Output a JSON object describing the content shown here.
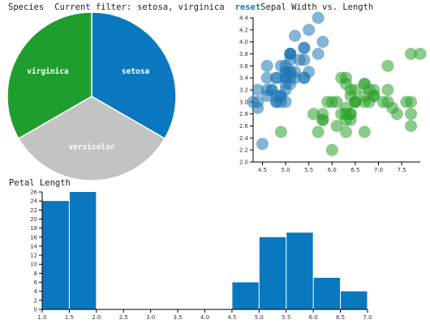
{
  "header": {
    "pie_title": "Species",
    "filter_label": "Current filter:",
    "filter_value": "setosa, virginica",
    "reset_label": "reset",
    "scatter_title": "Sepal Width vs. Length"
  },
  "histogram_title": "Petal Length",
  "colors": {
    "setosa": "#0a78bf",
    "versicolor": "#c3c3c3",
    "virginica": "#1f9e2f",
    "scatter_setosa": "#1f77b4",
    "scatter_virginica": "#2ca02c",
    "histogram_bar": "#0a78bf"
  },
  "chart_data": [
    {
      "type": "pie",
      "title": "Species",
      "slices": [
        {
          "label": "setosa",
          "value": 50
        },
        {
          "label": "versicolor",
          "value": 50
        },
        {
          "label": "virginica",
          "value": 50
        }
      ]
    },
    {
      "type": "scatter",
      "title": "Sepal Width vs. Length",
      "xlim": [
        4.3,
        7.9
      ],
      "ylim": [
        2.0,
        4.4
      ],
      "x_ticks": [
        "4.5",
        "5.0",
        "5.5",
        "6.0",
        "6.5",
        "7.0",
        "7.5"
      ],
      "y_ticks": [
        "2.0",
        "2.2",
        "2.4",
        "2.6",
        "2.8",
        "3.0",
        "3.2",
        "3.4",
        "3.6",
        "3.8",
        "4.0",
        "4.2",
        "4.4"
      ],
      "series": [
        {
          "points": [
            [
              5.1,
              3.5
            ],
            [
              4.9,
              3.0
            ],
            [
              4.7,
              3.2
            ],
            [
              4.6,
              3.1
            ],
            [
              5.0,
              3.6
            ],
            [
              5.4,
              3.9
            ],
            [
              4.6,
              3.4
            ],
            [
              5.0,
              3.4
            ],
            [
              4.4,
              2.9
            ],
            [
              4.9,
              3.1
            ],
            [
              5.4,
              3.7
            ],
            [
              4.8,
              3.4
            ],
            [
              4.8,
              3.0
            ],
            [
              4.3,
              3.0
            ],
            [
              5.8,
              4.0
            ],
            [
              5.7,
              4.4
            ],
            [
              5.4,
              3.9
            ],
            [
              5.1,
              3.5
            ],
            [
              5.7,
              3.8
            ],
            [
              5.1,
              3.8
            ],
            [
              5.4,
              3.4
            ],
            [
              5.1,
              3.7
            ],
            [
              4.6,
              3.6
            ],
            [
              5.1,
              3.3
            ],
            [
              4.8,
              3.4
            ],
            [
              5.0,
              3.0
            ],
            [
              5.0,
              3.4
            ],
            [
              5.2,
              3.5
            ],
            [
              5.2,
              3.4
            ],
            [
              4.7,
              3.2
            ],
            [
              4.8,
              3.1
            ],
            [
              5.4,
              3.4
            ],
            [
              5.2,
              4.1
            ],
            [
              5.5,
              4.2
            ],
            [
              4.9,
              3.1
            ],
            [
              5.0,
              3.2
            ],
            [
              5.5,
              3.5
            ],
            [
              4.9,
              3.6
            ],
            [
              4.4,
              3.0
            ],
            [
              5.1,
              3.4
            ],
            [
              5.0,
              3.5
            ],
            [
              4.5,
              2.3
            ],
            [
              4.4,
              3.2
            ],
            [
              5.0,
              3.5
            ],
            [
              5.1,
              3.8
            ],
            [
              4.8,
              3.0
            ],
            [
              5.1,
              3.8
            ],
            [
              4.6,
              3.2
            ],
            [
              5.3,
              3.7
            ],
            [
              5.0,
              3.3
            ]
          ]
        },
        {
          "points": [
            [
              6.3,
              3.3
            ],
            [
              5.8,
              2.7
            ],
            [
              7.1,
              3.0
            ],
            [
              6.3,
              2.9
            ],
            [
              6.5,
              3.0
            ],
            [
              7.6,
              3.0
            ],
            [
              4.9,
              2.5
            ],
            [
              7.3,
              2.9
            ],
            [
              6.7,
              2.5
            ],
            [
              7.2,
              3.6
            ],
            [
              6.5,
              3.2
            ],
            [
              6.4,
              2.7
            ],
            [
              6.8,
              3.0
            ],
            [
              5.7,
              2.5
            ],
            [
              5.8,
              2.8
            ],
            [
              6.4,
              3.2
            ],
            [
              6.5,
              3.0
            ],
            [
              7.7,
              3.8
            ],
            [
              7.7,
              2.6
            ],
            [
              6.0,
              2.2
            ],
            [
              6.9,
              3.2
            ],
            [
              5.6,
              2.8
            ],
            [
              7.7,
              2.8
            ],
            [
              6.3,
              2.7
            ],
            [
              6.7,
              3.3
            ],
            [
              7.2,
              3.2
            ],
            [
              6.2,
              2.8
            ],
            [
              6.1,
              3.0
            ],
            [
              6.4,
              2.8
            ],
            [
              7.2,
              3.0
            ],
            [
              7.4,
              2.8
            ],
            [
              7.9,
              3.8
            ],
            [
              6.4,
              2.8
            ],
            [
              6.3,
              2.8
            ],
            [
              6.1,
              2.6
            ],
            [
              7.7,
              3.0
            ],
            [
              6.3,
              3.4
            ],
            [
              6.4,
              3.1
            ],
            [
              6.0,
              3.0
            ],
            [
              6.9,
              3.1
            ],
            [
              6.7,
              3.1
            ],
            [
              6.9,
              3.1
            ],
            [
              5.8,
              2.7
            ],
            [
              6.8,
              3.2
            ],
            [
              6.7,
              3.3
            ],
            [
              6.7,
              3.0
            ],
            [
              6.3,
              2.5
            ],
            [
              6.5,
              3.0
            ],
            [
              6.2,
              3.4
            ],
            [
              5.9,
              3.0
            ]
          ]
        }
      ]
    },
    {
      "type": "bar",
      "title": "Petal Length",
      "xlim": [
        1.0,
        7.0
      ],
      "ylim": [
        0,
        26
      ],
      "bin_width": 0.5,
      "x_ticks": [
        "1.0",
        "1.5",
        "2.0",
        "2.5",
        "3.0",
        "3.5",
        "4.0",
        "4.5",
        "5.0",
        "5.5",
        "6.0",
        "6.5",
        "7.0"
      ],
      "y_ticks": [
        "0",
        "2",
        "4",
        "6",
        "8",
        "10",
        "12",
        "14",
        "16",
        "18",
        "20",
        "22",
        "24",
        "26"
      ],
      "bins": [
        {
          "start": 1.0,
          "value": 24
        },
        {
          "start": 1.5,
          "value": 26
        },
        {
          "start": 4.5,
          "value": 6
        },
        {
          "start": 5.0,
          "value": 16
        },
        {
          "start": 5.5,
          "value": 17
        },
        {
          "start": 6.0,
          "value": 7
        },
        {
          "start": 6.5,
          "value": 4
        }
      ]
    }
  ]
}
